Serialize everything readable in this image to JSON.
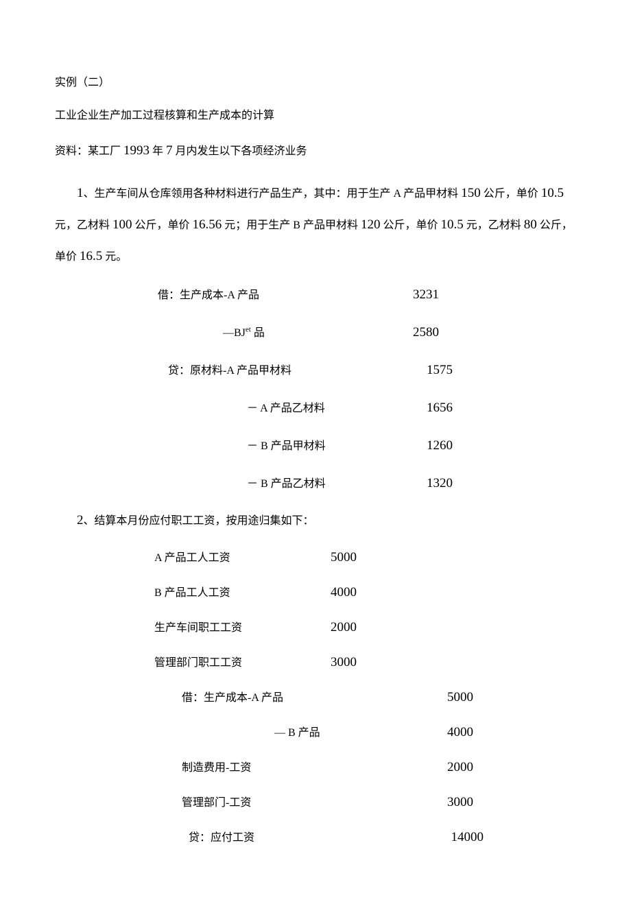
{
  "title_line": "实例（二）",
  "subtitle": "工业企业生产加工过程核算和生产成本的计算",
  "intro_prefix": "资料：某工厂 ",
  "intro_year": "1993",
  "intro_mid": " 年 ",
  "intro_month": "7",
  "intro_suffix": " 月内发生以下各项经济业务",
  "p1_a": "1",
  "p1_b": "、生产车间从仓库领用各种材料进行产品生产，其中：用于生产 A 产品甲材料 ",
  "p1_c": "150",
  "p1_d": " 公斤，单价 ",
  "p1_e": "10.5",
  "p1_f": " 元，乙材料 ",
  "p1_g": "100",
  "p1_h": " 公斤，单价 ",
  "p1_i": "16.56",
  "p1_j": " 元；用于生产 B 产品甲材料 ",
  "p1_k": "120",
  "p1_l": " 公斤，单价 ",
  "p1_m": "10.5",
  "p1_n": " 元，乙材料 ",
  "p1_o": "80",
  "p1_p": " 公斤，单价 ",
  "p1_q": "16.5",
  "p1_r": " 元。",
  "entries1": {
    "r1_label": "借：生产成本-A 产品",
    "r1_val": "3231",
    "r2_label_a": "—BJ",
    "r2_label_b": "et",
    "r2_label_c": " 品",
    "r2_val": "2580",
    "r3_label": "贷：原材料-A 产品甲材料",
    "r3_val": "1575",
    "r4_label": "－    A 产品乙材料",
    "r4_val": "1656",
    "r5_label": "－    B 产品甲材料",
    "r5_val": "1260",
    "r6_label": "－    B 产品乙材料",
    "r6_val": "1320"
  },
  "p2_a": "2",
  "p2_b": "、结算本月份应付职工工资，按用途归集如下：",
  "wages": {
    "w1_label": "A  产品工人工资",
    "w1_val": "5000",
    "w2_label": "B 产品工人工资",
    "w2_val": "4000",
    "w3_label": "生产车间职工工资",
    "w3_val": "2000",
    "w4_label": "管理部门职工工资",
    "w4_val": "3000"
  },
  "entries2": {
    "e1_label": "借：生产成本-A 产品",
    "e1_val": "5000",
    "e2_label": "— B 产品",
    "e2_val": "4000",
    "e3_label": "制造费用-工资",
    "e3_val": "2000",
    "e4_label": "管理部门-工资",
    "e4_val": "3000",
    "e5_label": "贷：应付工资",
    "e5_val": "14000"
  }
}
